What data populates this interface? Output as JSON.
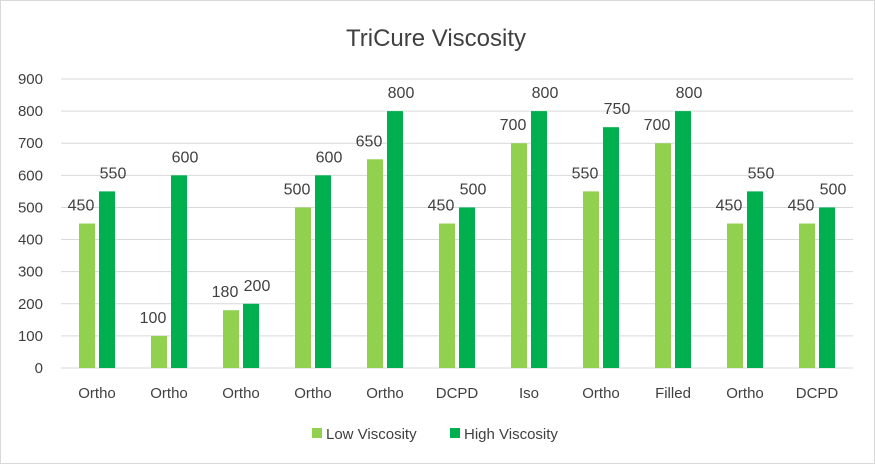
{
  "chart_data": {
    "type": "bar",
    "title": "TriCure Viscosity",
    "categories": [
      "Ortho",
      "Ortho",
      "Ortho",
      "Ortho",
      "Ortho",
      "DCPD",
      "Iso",
      "Ortho",
      "Filled",
      "Ortho",
      "DCPD"
    ],
    "series": [
      {
        "name": "Low Viscosity",
        "color": "#92d050",
        "values": [
          450,
          100,
          180,
          500,
          650,
          450,
          700,
          550,
          700,
          450,
          450
        ]
      },
      {
        "name": "High Viscosity",
        "color": "#00b050",
        "values": [
          550,
          600,
          200,
          600,
          800,
          500,
          800,
          750,
          800,
          550,
          500
        ]
      }
    ],
    "ylim": [
      0,
      900
    ],
    "yticks": [
      "0",
      "100",
      "200",
      "300",
      "400",
      "500",
      "600",
      "700",
      "800",
      "900"
    ],
    "xlabel": "",
    "ylabel": "",
    "grid": true,
    "legend": "bottom"
  }
}
